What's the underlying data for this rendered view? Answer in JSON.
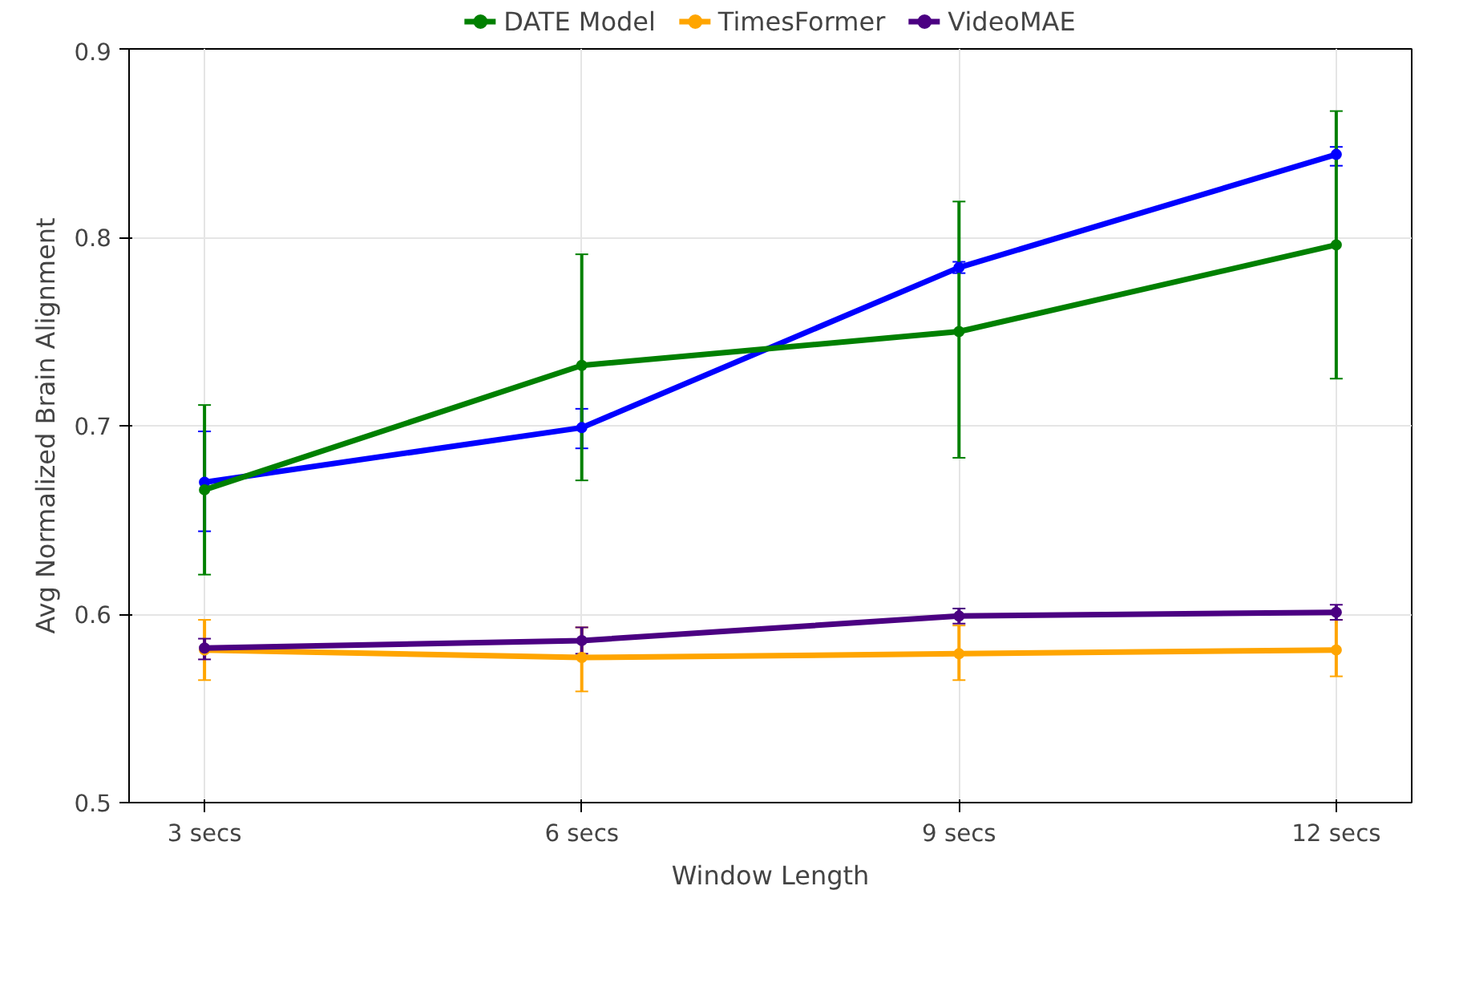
{
  "chart_data": {
    "type": "line",
    "xlabel": "Window Length",
    "ylabel": "Avg Normalized Brain Alignment",
    "categories": [
      "3 secs",
      "6 secs",
      "9 secs",
      "12 secs"
    ],
    "ylim": [
      0.5,
      0.9
    ],
    "yticks": [
      0.5,
      0.6,
      0.7,
      0.8,
      0.9
    ],
    "grid": true,
    "legend": "top",
    "marker": "circle",
    "line_style": "solid",
    "series": [
      {
        "color": "#0000ff",
        "values": [
          0.67,
          0.699,
          0.784,
          0.844
        ],
        "errors": [
          [
            0.644,
            0.697
          ],
          [
            0.688,
            0.709
          ],
          [
            0.781,
            0.787
          ],
          [
            0.838,
            0.848
          ]
        ]
      },
      {
        "name": "DATE Model",
        "color": "#008000",
        "values": [
          0.666,
          0.732,
          0.75,
          0.796
        ],
        "errors": [
          [
            0.621,
            0.711
          ],
          [
            0.671,
            0.791
          ],
          [
            0.683,
            0.819
          ],
          [
            0.725,
            0.867
          ]
        ]
      },
      {
        "name": "TimesFormer",
        "color": "#ffa500",
        "values": [
          0.581,
          0.577,
          0.579,
          0.581
        ],
        "errors": [
          [
            0.565,
            0.597
          ],
          [
            0.559,
            0.593
          ],
          [
            0.565,
            0.594
          ],
          [
            0.567,
            0.597
          ]
        ]
      },
      {
        "name": "VideoMAE",
        "color": "#4b0082",
        "values": [
          0.582,
          0.586,
          0.599,
          0.601
        ],
        "errors": [
          [
            0.576,
            0.587
          ],
          [
            0.579,
            0.593
          ],
          [
            0.595,
            0.603
          ],
          [
            0.597,
            0.605
          ]
        ]
      }
    ]
  }
}
